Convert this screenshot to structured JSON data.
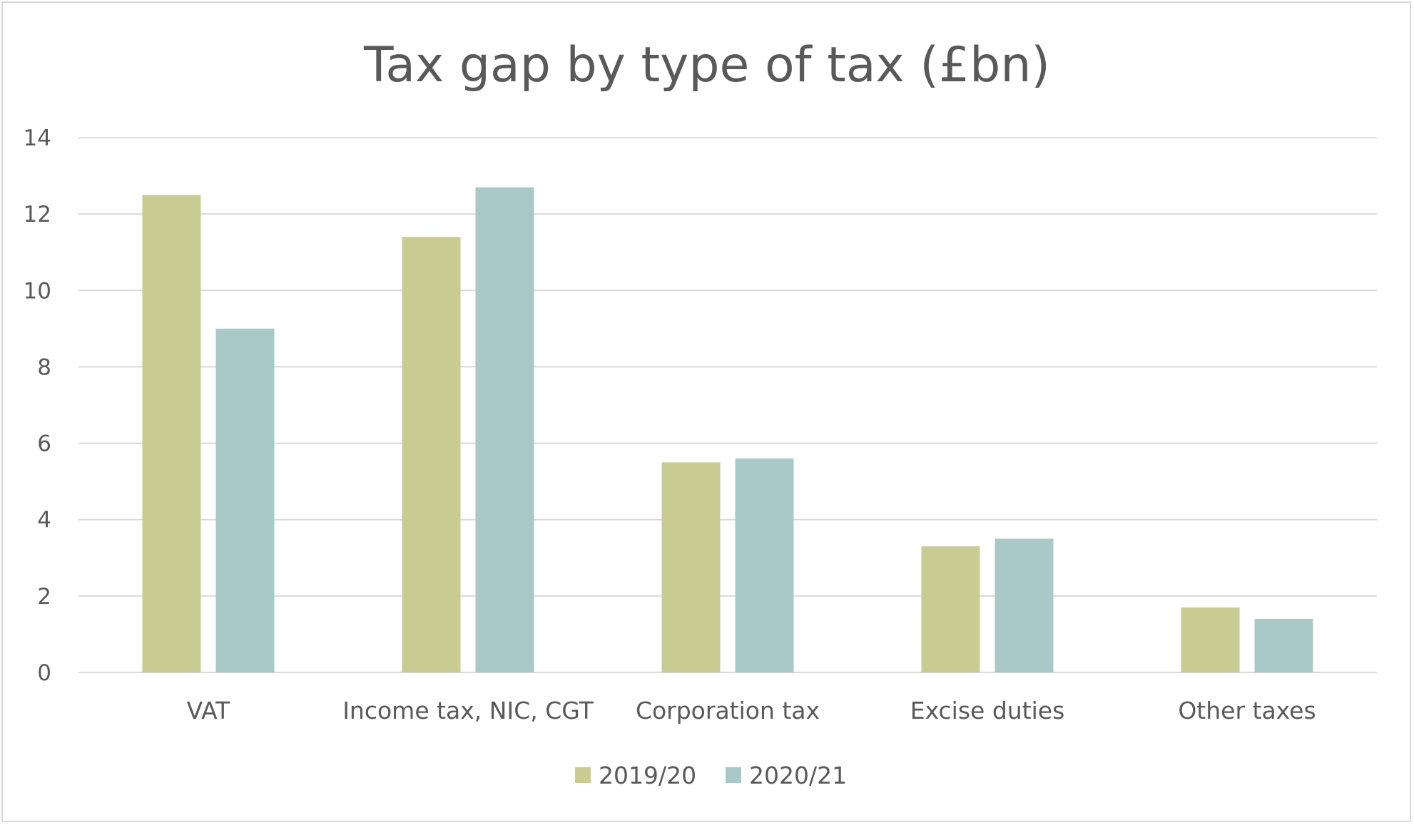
{
  "chart_data": {
    "type": "bar",
    "title": "Tax gap by type of tax (£bn)",
    "xlabel": "",
    "ylabel": "",
    "ylim": [
      0,
      14
    ],
    "yticks": [
      "0",
      "2",
      "4",
      "6",
      "8",
      "10",
      "12",
      "14"
    ],
    "grid": true,
    "legend_position": "bottom",
    "categories": [
      "VAT",
      "Income tax, NIC, CGT",
      "Corporation tax",
      "Excise duties",
      "Other taxes"
    ],
    "series": [
      {
        "name": "2019/20",
        "color": "#c8cc92",
        "values": [
          12.5,
          11.4,
          5.5,
          3.3,
          1.7
        ]
      },
      {
        "name": "2020/21",
        "color": "#a9c9c8",
        "values": [
          9.0,
          12.7,
          5.6,
          3.5,
          1.4
        ]
      }
    ]
  }
}
